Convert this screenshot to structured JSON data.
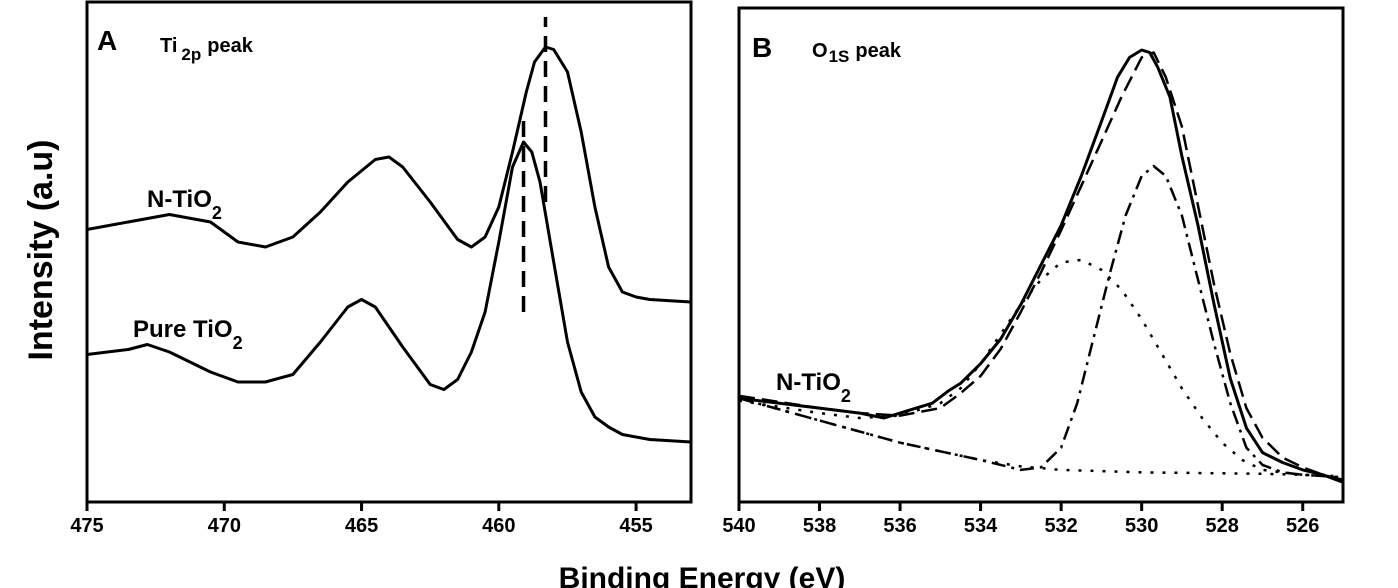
{
  "y_axis_label": "Intensity (a.u)",
  "x_axis_label": "Binding Energy (eV)",
  "chart_data": [
    {
      "type": "line",
      "panel": "A",
      "title_main": "Ti",
      "title_sub": "2p",
      "title_tail": "peak",
      "xlabel": "Binding Energy (eV)",
      "ylabel": "Intensity (a.u)",
      "xlim": [
        475,
        453
      ],
      "ylim": [
        0,
        1
      ],
      "x_ticks": [
        475,
        470,
        465,
        460,
        455
      ],
      "grid": false,
      "series": [
        {
          "name": "N-TiO2",
          "label_main": "N-TiO",
          "label_sub": "2",
          "style": "solid",
          "x": [
            475,
            473.5,
            472,
            470.5,
            469.5,
            468.5,
            467.5,
            466.5,
            465.5,
            464.5,
            464,
            463.5,
            462.5,
            461.5,
            461,
            460.5,
            460,
            459.5,
            459,
            458.7,
            458.3,
            458,
            457.5,
            457,
            456.5,
            456,
            455.5,
            455,
            454.5,
            453
          ],
          "y": [
            0.545,
            0.56,
            0.575,
            0.56,
            0.52,
            0.51,
            0.53,
            0.58,
            0.64,
            0.685,
            0.69,
            0.67,
            0.6,
            0.525,
            0.51,
            0.53,
            0.59,
            0.7,
            0.82,
            0.88,
            0.91,
            0.905,
            0.86,
            0.74,
            0.59,
            0.47,
            0.42,
            0.41,
            0.405,
            0.4
          ]
        },
        {
          "name": "Pure TiO2",
          "label_main": "Pure TiO",
          "label_sub": "2",
          "style": "solid",
          "x": [
            475,
            473.5,
            472.8,
            472,
            470.5,
            469.5,
            468.5,
            467.5,
            466.5,
            465.5,
            465,
            464.5,
            463.5,
            462.5,
            462,
            461.5,
            461,
            460.5,
            460,
            459.5,
            459.1,
            458.8,
            458.5,
            458,
            457.5,
            457,
            456.5,
            456,
            455.5,
            455,
            454.5,
            453
          ],
          "y": [
            0.295,
            0.305,
            0.315,
            0.3,
            0.26,
            0.24,
            0.24,
            0.255,
            0.32,
            0.39,
            0.405,
            0.39,
            0.31,
            0.235,
            0.225,
            0.245,
            0.3,
            0.38,
            0.52,
            0.67,
            0.72,
            0.7,
            0.64,
            0.48,
            0.32,
            0.22,
            0.17,
            0.15,
            0.135,
            0.13,
            0.125,
            0.12
          ]
        }
      ],
      "markers": [
        {
          "x": 458.3,
          "y_from": 0.6,
          "y_to": 0.97
        },
        {
          "x": 459.1,
          "y_from": 0.38,
          "y_to": 0.78
        }
      ]
    },
    {
      "type": "line",
      "panel": "B",
      "title_main": "O",
      "title_sub": "1S",
      "title_tail": "peak",
      "xlabel": "Binding Energy (eV)",
      "ylabel": "Intensity (a.u)",
      "xlim": [
        540,
        525
      ],
      "ylim": [
        0,
        1
      ],
      "x_ticks": [
        540,
        538,
        536,
        534,
        532,
        530,
        528,
        526
      ],
      "grid": false,
      "label_main": "N-TiO",
      "label_sub": "2",
      "series": [
        {
          "role": "measured",
          "style": "solid",
          "x": [
            540,
            539,
            538,
            537,
            536.4,
            536,
            535.6,
            535.2,
            534.8,
            534.5,
            534,
            533.5,
            533,
            532.5,
            532,
            531.5,
            531,
            530.6,
            530.3,
            530,
            529.8,
            529.6,
            529.3,
            529,
            528.6,
            528.2,
            527.8,
            527.4,
            527,
            526.5,
            526,
            525.5,
            525
          ],
          "y": [
            0.21,
            0.2,
            0.19,
            0.18,
            0.17,
            0.18,
            0.19,
            0.2,
            0.225,
            0.24,
            0.28,
            0.33,
            0.4,
            0.48,
            0.56,
            0.66,
            0.77,
            0.86,
            0.9,
            0.915,
            0.91,
            0.88,
            0.82,
            0.7,
            0.56,
            0.4,
            0.25,
            0.15,
            0.1,
            0.08,
            0.065,
            0.055,
            0.04
          ]
        },
        {
          "role": "fit",
          "style": "dashed",
          "x": [
            540,
            538,
            537,
            536,
            535,
            534.5,
            534,
            533.5,
            533,
            532.5,
            532,
            531.5,
            531,
            530.5,
            530,
            529.7,
            529.4,
            529,
            528.6,
            528.2,
            527.8,
            527.4,
            527,
            526.5,
            526,
            525.5,
            525
          ],
          "y": [
            0.215,
            0.19,
            0.18,
            0.175,
            0.19,
            0.22,
            0.255,
            0.31,
            0.385,
            0.465,
            0.55,
            0.64,
            0.73,
            0.82,
            0.9,
            0.91,
            0.86,
            0.76,
            0.6,
            0.44,
            0.3,
            0.19,
            0.13,
            0.09,
            0.07,
            0.055,
            0.045
          ]
        },
        {
          "role": "component",
          "style": "dash-dot",
          "x": [
            540,
            538,
            536,
            534,
            533,
            532.5,
            532,
            531.6,
            531.2,
            530.8,
            530.4,
            530,
            529.7,
            529.4,
            529,
            528.6,
            528.2,
            527.8,
            527.4,
            527,
            526.5,
            526,
            525
          ],
          "y": [
            0.21,
            0.165,
            0.12,
            0.085,
            0.065,
            0.07,
            0.11,
            0.2,
            0.33,
            0.46,
            0.58,
            0.66,
            0.68,
            0.66,
            0.58,
            0.45,
            0.32,
            0.2,
            0.11,
            0.075,
            0.06,
            0.055,
            0.05
          ]
        },
        {
          "role": "component",
          "style": "dotted",
          "x": [
            540,
            538,
            537,
            536,
            535,
            534.5,
            534,
            533.5,
            533,
            532.5,
            532,
            531.5,
            531,
            530.5,
            530,
            529.5,
            529,
            528.5,
            528,
            527.5,
            527,
            526,
            525
          ],
          "y": [
            0.205,
            0.18,
            0.17,
            0.175,
            0.2,
            0.23,
            0.28,
            0.34,
            0.4,
            0.45,
            0.485,
            0.49,
            0.47,
            0.43,
            0.37,
            0.3,
            0.23,
            0.17,
            0.12,
            0.085,
            0.065,
            0.055,
            0.05
          ]
        },
        {
          "role": "baseline",
          "style": "dotted",
          "x": [
            540,
            538,
            536,
            534,
            533,
            532,
            530,
            528,
            527,
            526,
            525
          ],
          "y": [
            0.21,
            0.165,
            0.12,
            0.085,
            0.072,
            0.065,
            0.06,
            0.058,
            0.057,
            0.055,
            0.052
          ]
        }
      ]
    }
  ]
}
